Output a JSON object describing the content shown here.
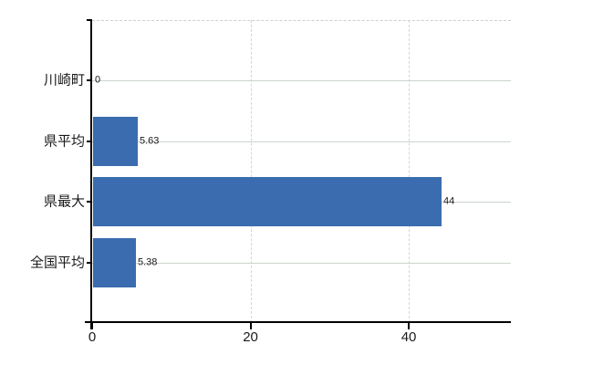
{
  "chart_data": {
    "type": "bar",
    "orientation": "horizontal",
    "title": "",
    "xlabel": "",
    "ylabel": "",
    "categories": [
      "川崎町",
      "県平均",
      "県最大",
      "全国平均"
    ],
    "values": [
      0,
      5.63,
      44,
      5.38
    ],
    "value_labels": [
      "0",
      "5.63",
      "44",
      "5.38"
    ],
    "x_ticks": [
      0,
      20,
      40
    ],
    "x_tick_labels": [
      "0",
      "20",
      "40"
    ],
    "xlim": [
      0,
      52.9
    ],
    "grid": "on",
    "legend": "none",
    "bar_color": "#3B6CAF",
    "h_gridline_color": "#ccd5cc",
    "v_gridline_color": "#d9d2d9",
    "axis_color": "#000000",
    "text_color": "#1a1a1a"
  }
}
